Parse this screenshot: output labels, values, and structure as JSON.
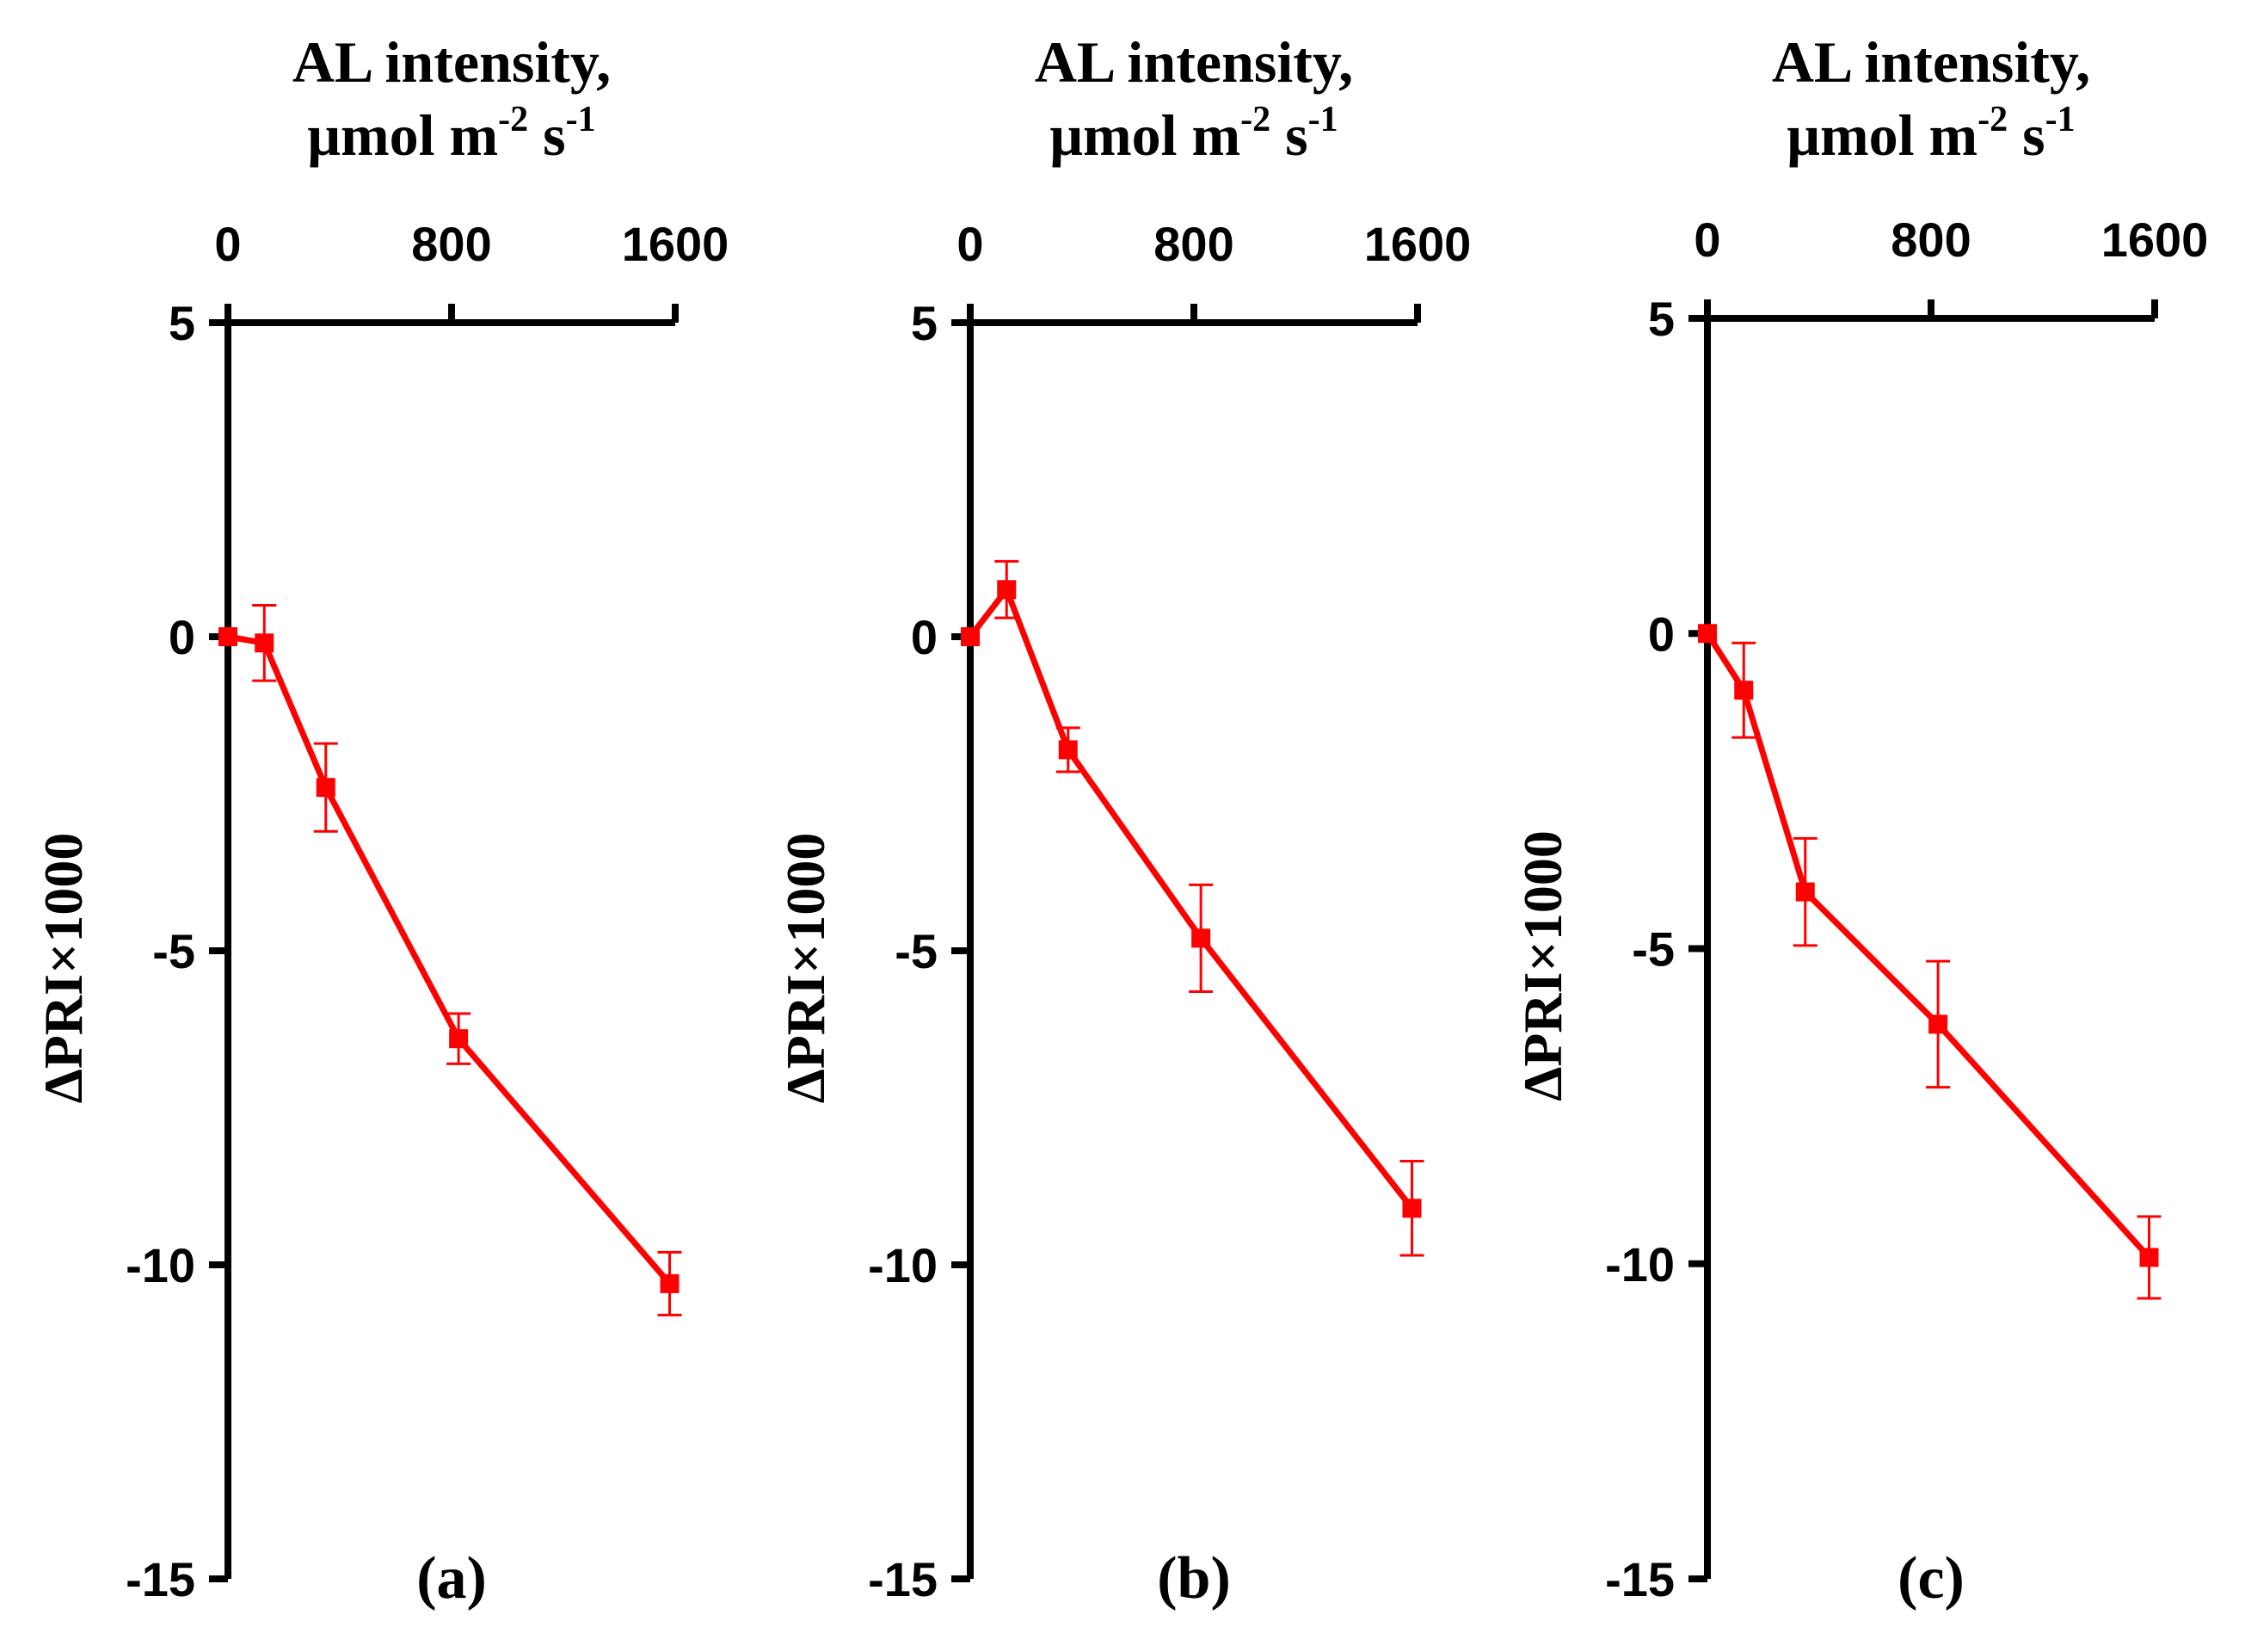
{
  "chart_data": [
    {
      "type": "line",
      "panel_label": "(a)",
      "title_line1": "AL intensity,",
      "title_line2": "μmol m",
      "title_sup1": "-2",
      "title_mid": " s",
      "title_sup2": "-1",
      "ylabel": "ΔPRI×1000",
      "xlim": [
        0,
        1600
      ],
      "ylim": [
        -15,
        5
      ],
      "x_ticks": [
        0,
        800,
        1600
      ],
      "x_tick_labels": [
        "0",
        "800",
        "1600"
      ],
      "y_ticks": [
        5,
        0,
        -5,
        -10,
        -15
      ],
      "y_tick_labels": [
        "5",
        "0",
        "-5",
        "-10",
        "-15"
      ],
      "series": [
        {
          "name": "ΔPRI",
          "color": "#ff0000",
          "x": [
            0,
            130,
            350,
            825,
            1580
          ],
          "y": [
            0.0,
            -0.1,
            -2.4,
            -6.4,
            -10.3
          ],
          "err": [
            0.0,
            0.6,
            0.7,
            0.4,
            0.5
          ]
        }
      ]
    },
    {
      "type": "line",
      "panel_label": "(b)",
      "title_line1": "AL intensity,",
      "title_line2": "μmol m",
      "title_sup1": "-2",
      "title_mid": " s",
      "title_sup2": "-1",
      "ylabel": "ΔPRI×1000",
      "xlim": [
        0,
        1600
      ],
      "ylim": [
        -15,
        5
      ],
      "x_ticks": [
        0,
        800,
        1600
      ],
      "x_tick_labels": [
        "0",
        "800",
        "1600"
      ],
      "y_ticks": [
        5,
        0,
        -5,
        -10,
        -15
      ],
      "y_tick_labels": [
        "5",
        "0",
        "-5",
        "-10",
        "-15"
      ],
      "series": [
        {
          "name": "ΔPRI",
          "color": "#ff0000",
          "x": [
            0,
            130,
            350,
            825,
            1580
          ],
          "y": [
            0.0,
            0.75,
            -1.8,
            -4.8,
            -9.1
          ],
          "err": [
            0.0,
            0.45,
            0.35,
            0.85,
            0.75
          ]
        }
      ]
    },
    {
      "type": "line",
      "panel_label": "(c)",
      "title_line1": "AL intensity,",
      "title_line2": "μmol m",
      "title_sup1": "-2",
      "title_mid": " s",
      "title_sup2": "-1",
      "ylabel": "ΔPRI×1000",
      "xlim": [
        0,
        1600
      ],
      "ylim": [
        -15,
        5
      ],
      "x_ticks": [
        0,
        800,
        1600
      ],
      "x_tick_labels": [
        "0",
        "800",
        "1600"
      ],
      "y_ticks": [
        5,
        0,
        -5,
        -10,
        -15
      ],
      "y_tick_labels": [
        "5",
        "0",
        "-5",
        "-10",
        "-15"
      ],
      "series": [
        {
          "name": "ΔPRI",
          "color": "#ff0000",
          "x": [
            0,
            130,
            350,
            825,
            1580
          ],
          "y": [
            0.0,
            -0.9,
            -4.1,
            -6.2,
            -9.9
          ],
          "err": [
            0.0,
            0.75,
            0.85,
            1.0,
            0.65
          ]
        }
      ]
    }
  ]
}
